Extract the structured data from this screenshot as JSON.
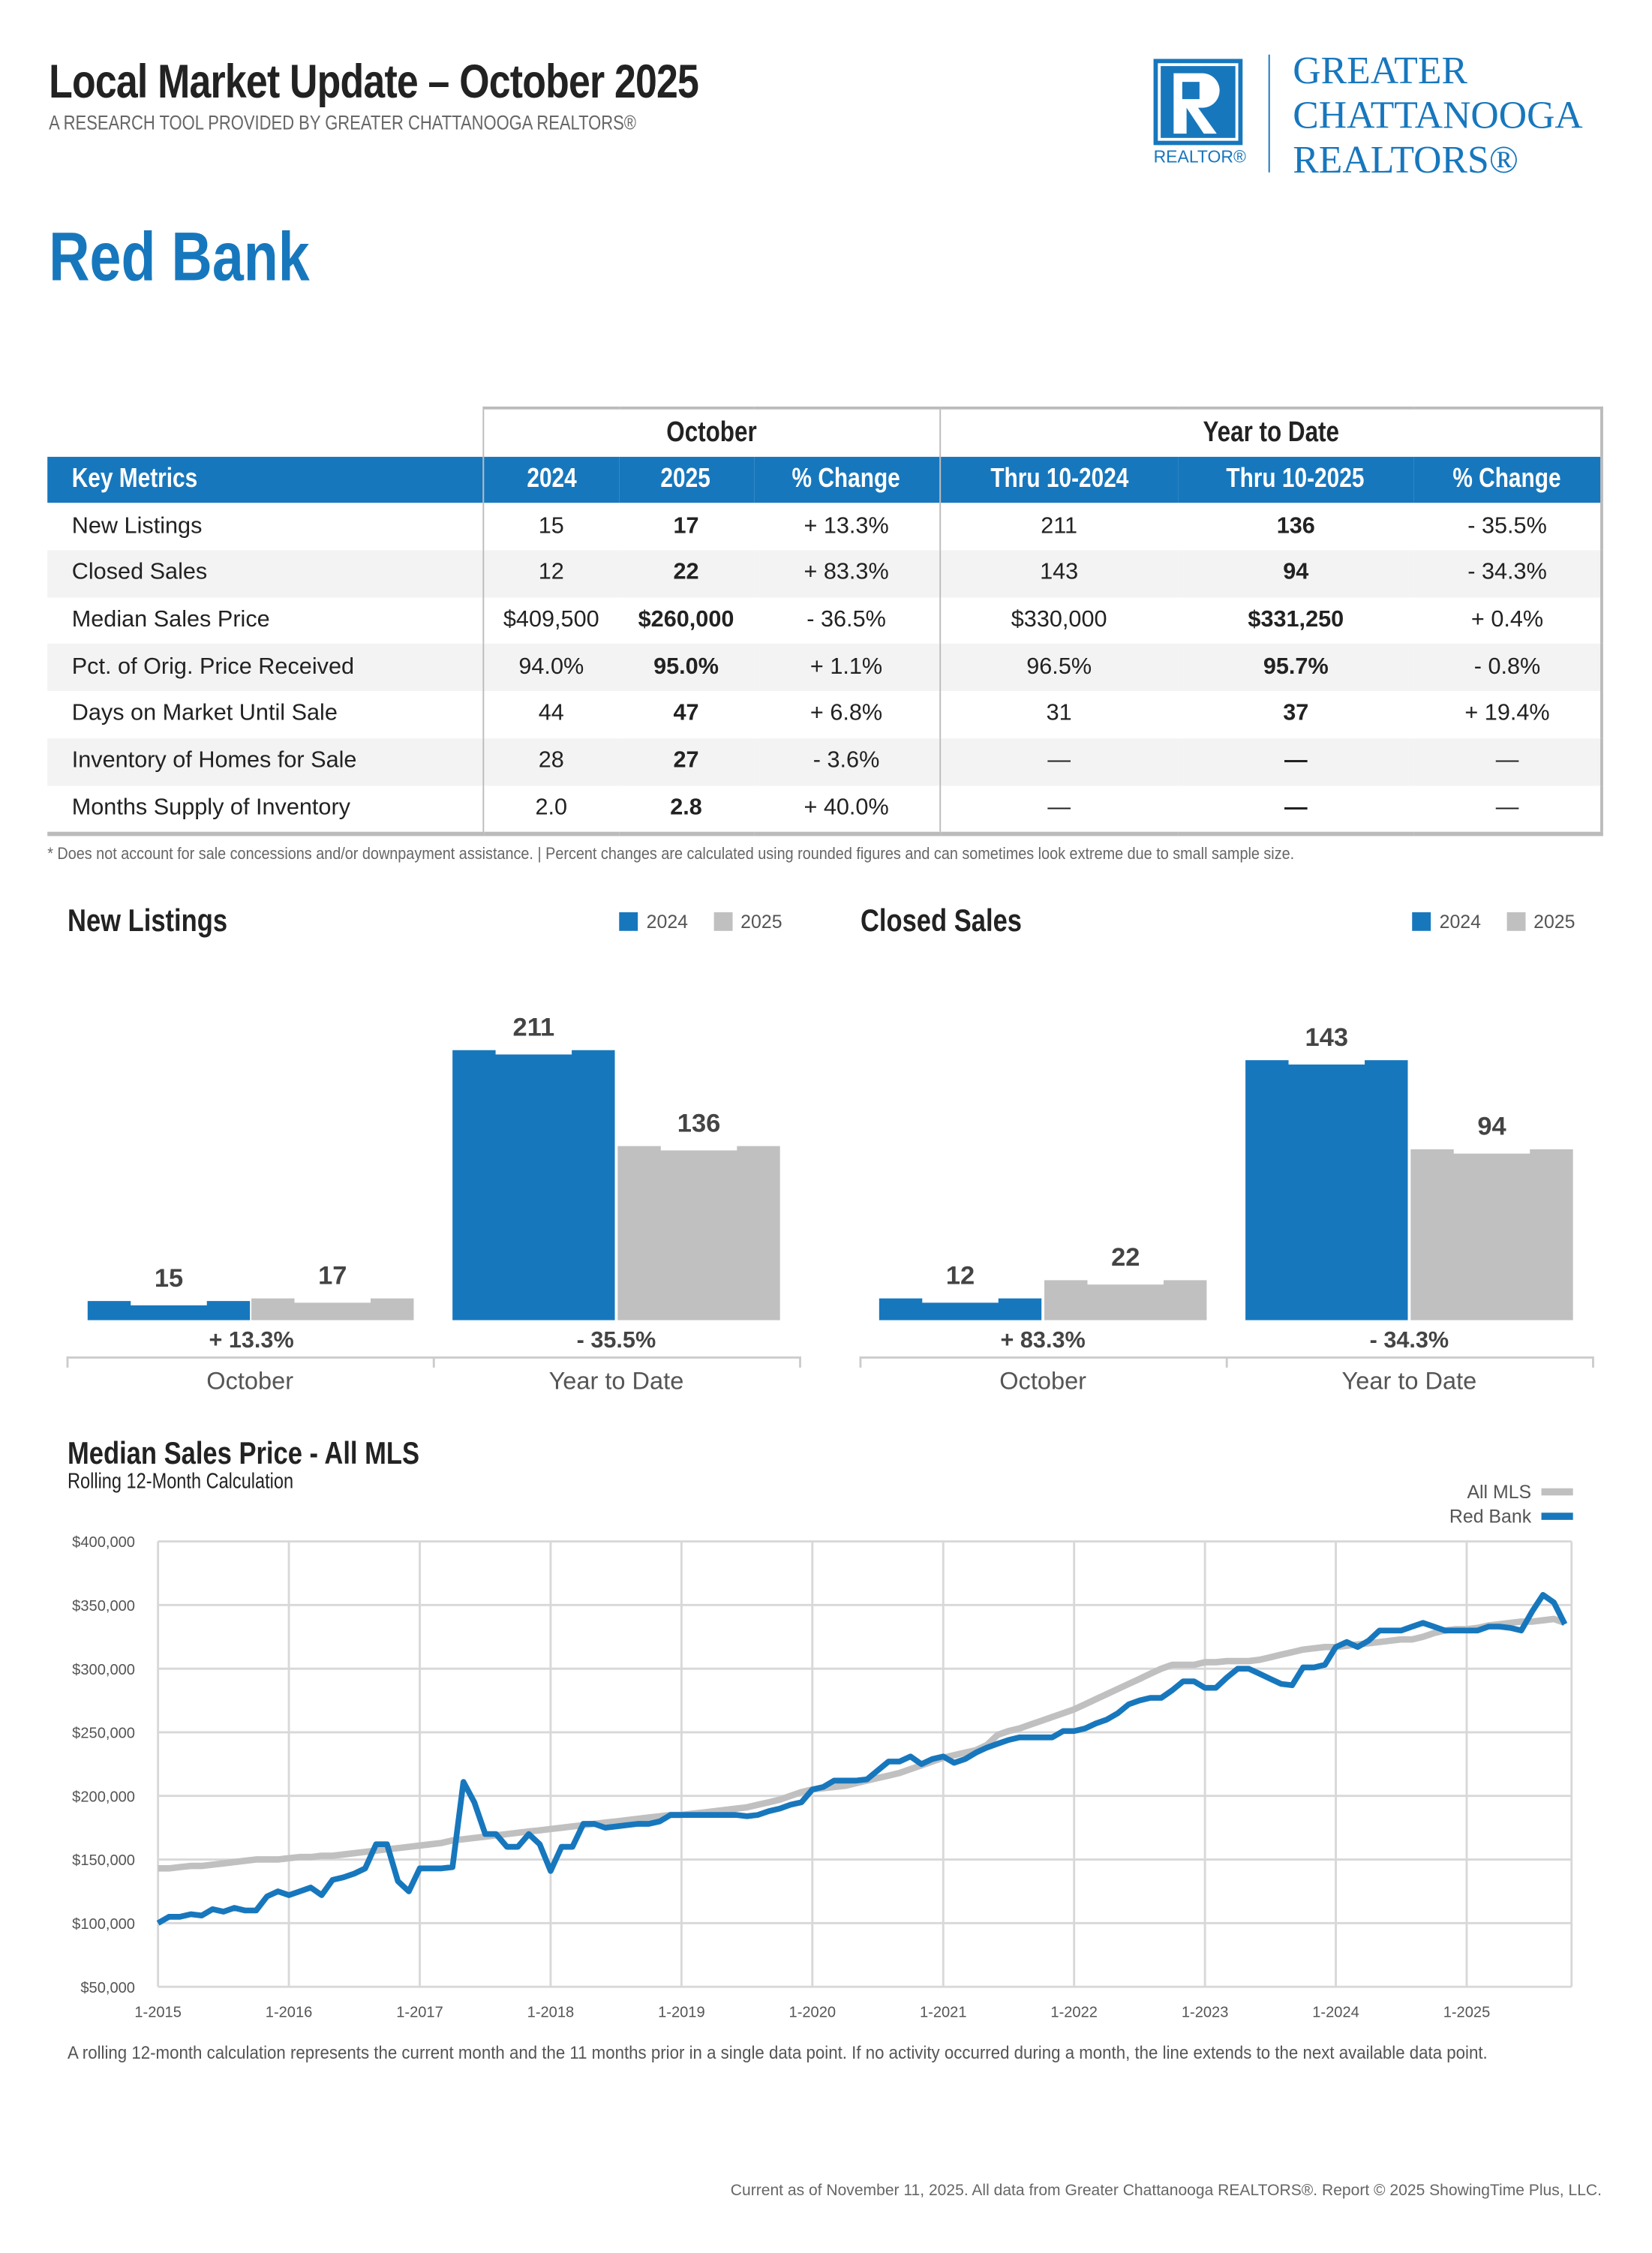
{
  "header": {
    "title": "Local Market Update – October 2025",
    "subtitle": "A RESEARCH TOOL PROVIDED BY GREATER CHATTANOOGA REALTORS®",
    "area": "Red Bank"
  },
  "logo": {
    "mark_text": "REALTOR®",
    "name_lines": [
      "GREATER",
      "CHATTANOOGA",
      "REALTORS®"
    ],
    "color": "#1777bd"
  },
  "table": {
    "group_headers": [
      "October",
      "Year to Date"
    ],
    "columns": [
      "Key Metrics",
      "2024",
      "2025",
      "% Change",
      "Thru 10-2024",
      "Thru 10-2025",
      "% Change"
    ],
    "rows": [
      [
        "New Listings",
        "15",
        "17",
        "+ 13.3%",
        "211",
        "136",
        "- 35.5%"
      ],
      [
        "Closed Sales",
        "12",
        "22",
        "+ 83.3%",
        "143",
        "94",
        "- 34.3%"
      ],
      [
        "Median Sales Price",
        "$409,500",
        "$260,000",
        "- 36.5%",
        "$330,000",
        "$331,250",
        "+ 0.4%"
      ],
      [
        "Pct. of Orig. Price Received",
        "94.0%",
        "95.0%",
        "+ 1.1%",
        "96.5%",
        "95.7%",
        "- 0.8%"
      ],
      [
        "Days on Market Until Sale",
        "44",
        "47",
        "+ 6.8%",
        "31",
        "37",
        "+ 19.4%"
      ],
      [
        "Inventory of Homes for Sale",
        "28",
        "27",
        "- 3.6%",
        "—",
        "—",
        "—"
      ],
      [
        "Months Supply of Inventory",
        "2.0",
        "2.8",
        "+ 40.0%",
        "—",
        "—",
        "—"
      ]
    ],
    "footnote": "* Does not account for sale concessions and/or downpayment assistance.  |  Percent changes are calculated using rounded figures and can sometimes look extreme due to small sample size."
  },
  "colors": {
    "y2024": "#1777bd",
    "y2025": "#c0c0c0",
    "blue": "#1777bd",
    "gray": "#c0c0c0"
  },
  "chart_data": [
    {
      "type": "bar",
      "title": "New Listings",
      "categories": [
        "October",
        "Year to Date"
      ],
      "series": [
        {
          "name": "2024",
          "values": [
            15,
            211
          ]
        },
        {
          "name": "2025",
          "values": [
            17,
            136
          ]
        }
      ],
      "changes": [
        "+ 13.3%",
        "- 35.5%"
      ],
      "legend": "top-right"
    },
    {
      "type": "bar",
      "title": "Closed Sales",
      "categories": [
        "October",
        "Year to Date"
      ],
      "series": [
        {
          "name": "2024",
          "values": [
            12,
            143
          ]
        },
        {
          "name": "2025",
          "values": [
            22,
            94
          ]
        }
      ],
      "changes": [
        "+ 83.3%",
        "- 34.3%"
      ],
      "legend": "top-right"
    },
    {
      "type": "line",
      "title": "Median Sales Price - All MLS",
      "subtitle": "Rolling 12-Month Calculation",
      "x_start": "1-2015",
      "x_end": "10-2025",
      "x_interval": "monthly",
      "xticks": [
        "1-2015",
        "1-2016",
        "1-2017",
        "1-2018",
        "1-2019",
        "1-2020",
        "1-2021",
        "1-2022",
        "1-2023",
        "1-2024",
        "1-2025"
      ],
      "yticks": [
        "$50,000",
        "$100,000",
        "$150,000",
        "$200,000",
        "$250,000",
        "$300,000",
        "$350,000",
        "$400,000"
      ],
      "ylim": [
        50000,
        400000
      ],
      "grid": true,
      "legend": "top-right",
      "series": [
        {
          "name": "All MLS",
          "color": "#c0c0c0",
          "values": [
            143,
            143,
            144,
            145,
            145,
            146,
            147,
            148,
            149,
            150,
            150,
            150,
            151,
            152,
            152,
            153,
            153,
            154,
            155,
            156,
            157,
            158,
            159,
            160,
            161,
            162,
            163,
            165,
            166,
            167,
            168,
            169,
            170,
            171,
            172,
            173,
            174,
            175,
            176,
            177,
            178,
            179,
            180,
            181,
            182,
            183,
            184,
            185,
            185,
            186,
            187,
            188,
            189,
            190,
            191,
            193,
            195,
            197,
            200,
            203,
            205,
            206,
            207,
            208,
            210,
            212,
            214,
            216,
            218,
            221,
            224,
            227,
            230,
            232,
            234,
            236,
            240,
            248,
            251,
            253,
            256,
            259,
            262,
            265,
            268,
            272,
            276,
            280,
            284,
            288,
            292,
            296,
            300,
            303,
            303,
            303,
            305,
            305,
            306,
            306,
            306,
            307,
            309,
            311,
            313,
            315,
            316,
            317,
            317,
            318,
            319,
            320,
            321,
            322,
            323,
            323,
            325,
            328,
            330,
            331,
            331,
            332,
            334,
            335,
            336,
            337,
            337,
            338,
            339,
            336
          ]
        },
        {
          "name": "Red Bank",
          "color": "#1777bd",
          "values": [
            100,
            105,
            105,
            107,
            106,
            111,
            109,
            112,
            110,
            110,
            121,
            125,
            122,
            125,
            128,
            122,
            134,
            136,
            139,
            143,
            162,
            162,
            133,
            125,
            143,
            143,
            143,
            144,
            211,
            195,
            170,
            170,
            160,
            160,
            170,
            162,
            141,
            160,
            160,
            178,
            178,
            175,
            176,
            177,
            178,
            178,
            180,
            185,
            185,
            185,
            185,
            185,
            185,
            185,
            184,
            185,
            188,
            190,
            193,
            195,
            205,
            207,
            212,
            212,
            212,
            213,
            220,
            227,
            227,
            231,
            225,
            229,
            231,
            226,
            229,
            234,
            238,
            241,
            244,
            246,
            246,
            246,
            246,
            251,
            251,
            253,
            257,
            260,
            265,
            272,
            275,
            277,
            277,
            283,
            290,
            290,
            285,
            285,
            293,
            300,
            300,
            296,
            292,
            288,
            287,
            301,
            301,
            303,
            317,
            321,
            317,
            322,
            330,
            330,
            330,
            333,
            336,
            333,
            330,
            330,
            330,
            330,
            333,
            333,
            332,
            330,
            345,
            358,
            352,
            335
          ]
        }
      ]
    }
  ],
  "line_note": "A rolling 12-month calculation represents the current month and the 11 months prior in a single data point. If no activity occurred during a month, the line extends to the next available data point.",
  "footer": "Current as of November 11, 2025. All data from Greater Chattanooga REALTORS®. Report © 2025 ShowingTime Plus, LLC."
}
